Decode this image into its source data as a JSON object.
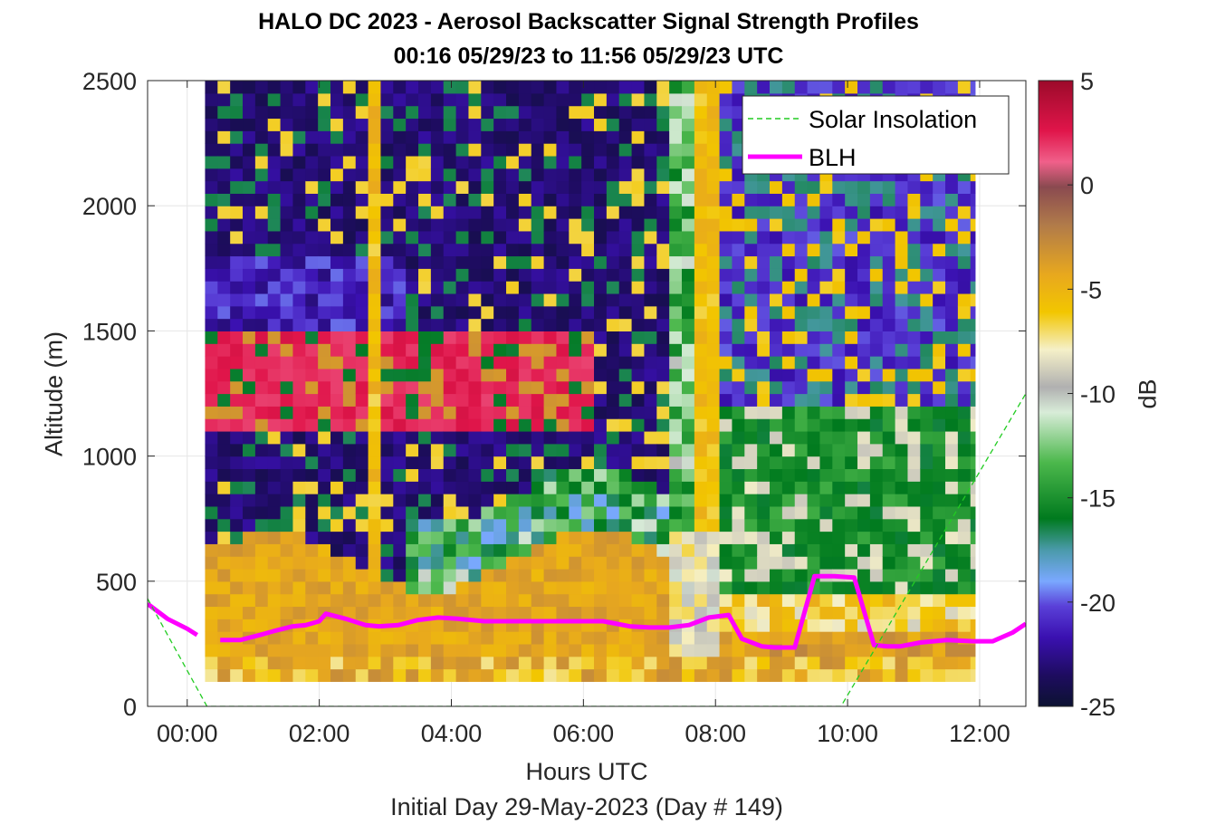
{
  "chart_data": {
    "type": "heatmap",
    "title": "HALO DC 2023 - Aerosol Backscatter Signal Strength Profiles",
    "subtitle": "00:16 05/29/23 to 11:56 05/29/23  UTC",
    "xlabel": "Hours UTC",
    "xsublabel": "Initial Day 29-May-2023 (Day # 149)",
    "ylabel": "Altitude (m)",
    "colorbar_label": "dB",
    "xlim": [
      -0.6,
      12.7
    ],
    "ylim": [
      0,
      2500
    ],
    "x_ticks": [
      0,
      2,
      4,
      6,
      8,
      10,
      12
    ],
    "x_tick_labels": [
      "00:00",
      "02:00",
      "04:00",
      "06:00",
      "08:00",
      "10:00",
      "12:00"
    ],
    "y_ticks": [
      0,
      500,
      1000,
      1500,
      2000,
      2500
    ],
    "y_tick_labels": [
      "0",
      "500",
      "1000",
      "1500",
      "2000",
      "2500"
    ],
    "colorbar_range": [
      -25,
      5
    ],
    "colorbar_ticks": [
      5,
      0,
      -5,
      -10,
      -15,
      -20,
      -25
    ],
    "colorbar_tick_labels": [
      "5",
      "0",
      "-5",
      "-10",
      "-15",
      "-20",
      "-25"
    ],
    "grid": true,
    "legend_position": "top-right",
    "legend": [
      {
        "name": "Solar Insolation",
        "style": "dashed",
        "color": "#22cc22"
      },
      {
        "name": "BLH",
        "style": "solid",
        "color": "#ff00ff"
      }
    ],
    "heatmap": {
      "time_start_hours": 0.27,
      "time_end_hours": 11.93,
      "altitude_bottom_m": 100,
      "altitude_top_m": 2500,
      "approx_profile_structure": "Near-surface aerosol layer from about 100 m up to 550-700 m at -6 to -3 dB through most of the period; elevated layer 1000-1500 m at 0 to +5 dB between 00:20 and 06:00; clean free troposphere above at -25 to -20 dB; vertical high-signal column near 02:40 and 07:50; after 08:00 the lower layer weakens to -15 to -10 dB up to about 1200 m."
    },
    "series": [
      {
        "name": "BLH",
        "x": [
          -0.6,
          -0.3,
          0.0,
          0.15,
          null,
          0.5,
          0.8,
          1.1,
          1.3,
          1.6,
          1.8,
          2.0,
          2.1,
          2.4,
          2.7,
          2.9,
          3.2,
          3.5,
          3.8,
          4.1,
          4.5,
          5.0,
          5.5,
          6.0,
          6.3,
          6.7,
          7.0,
          7.3,
          7.6,
          7.9,
          8.2,
          8.4,
          8.7,
          8.9,
          9.2,
          9.5,
          9.8,
          10.1,
          10.4,
          10.6,
          10.8,
          11.1,
          11.5,
          11.9,
          12.2,
          12.5,
          12.7
        ],
        "y": [
          410,
          350,
          310,
          285,
          null,
          265,
          265,
          285,
          300,
          320,
          325,
          340,
          370,
          350,
          325,
          320,
          325,
          345,
          355,
          350,
          340,
          340,
          340,
          340,
          340,
          320,
          315,
          315,
          325,
          355,
          365,
          270,
          240,
          235,
          235,
          520,
          520,
          515,
          245,
          240,
          240,
          255,
          265,
          260,
          260,
          295,
          330
        ]
      },
      {
        "name": "Solar Insolation",
        "x": [
          -0.6,
          0.3,
          9.9,
          12.7
        ],
        "y": [
          430,
          0,
          0,
          1250
        ]
      }
    ]
  }
}
